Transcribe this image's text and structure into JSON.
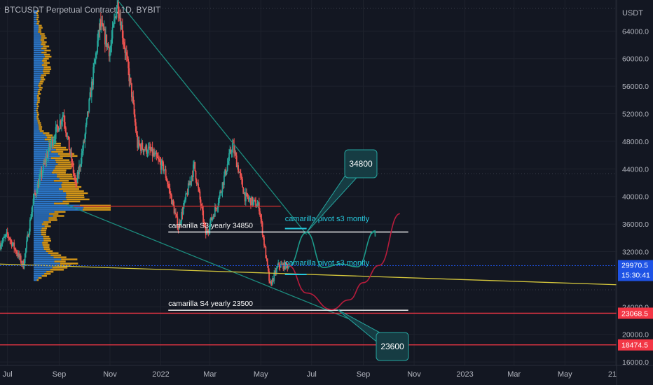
{
  "header": {
    "title": "BTCUSDT Perpetual Contract, 1D, BYBIT"
  },
  "chart_data": {
    "type": "candlestick",
    "symbol": "BTCUSDT",
    "interval": "1D",
    "exchange": "BYBIT",
    "y_unit_label": "USDT",
    "ylim": [
      15500,
      68500
    ],
    "y_ticks": [
      64000,
      60000,
      56000,
      52000,
      48000,
      44000,
      40000,
      36000,
      32000,
      24000,
      20000,
      16000
    ],
    "y_tick_labels": [
      "64000.0",
      "60000.0",
      "56000.0",
      "52000.0",
      "48000.0",
      "44000.0",
      "40000.0",
      "36000.0",
      "32000.0",
      "24000.0",
      "20000.0",
      "16000.0"
    ],
    "x_tick_labels": [
      "Jul",
      "Sep",
      "Nov",
      "2022",
      "Mar",
      "May",
      "Jul",
      "Sep",
      "Nov",
      "2023",
      "Mar",
      "May",
      "21"
    ],
    "x_ticks": [
      "2021-07-01",
      "2021-09-01",
      "2021-11-01",
      "2022-01-01",
      "2022-03-01",
      "2022-05-01",
      "2022-07-01",
      "2022-09-01",
      "2022-11-01",
      "2023-01-01",
      "2023-03-01",
      "2023-05-01",
      "2023-07-01"
    ],
    "xlim": [
      "2021-06-22",
      "2023-07-02"
    ],
    "grid": true,
    "price_path": [
      [
        "2021-06-22",
        33000
      ],
      [
        "2021-07-01",
        34500
      ],
      [
        "2021-07-20",
        30000
      ],
      [
        "2021-08-01",
        39500
      ],
      [
        "2021-08-20",
        47000
      ],
      [
        "2021-09-06",
        52000
      ],
      [
        "2021-09-21",
        41500
      ],
      [
        "2021-10-01",
        48000
      ],
      [
        "2021-10-20",
        65000
      ],
      [
        "2021-11-01",
        61000
      ],
      [
        "2021-11-10",
        68500
      ],
      [
        "2021-11-27",
        55000
      ],
      [
        "2021-12-04",
        47500
      ],
      [
        "2021-12-20",
        46500
      ],
      [
        "2022-01-05",
        44000
      ],
      [
        "2022-01-22",
        35500
      ],
      [
        "2022-02-10",
        44500
      ],
      [
        "2022-02-24",
        34500
      ],
      [
        "2022-03-10",
        39000
      ],
      [
        "2022-03-28",
        47500
      ],
      [
        "2022-04-12",
        40000
      ],
      [
        "2022-04-29",
        38500
      ],
      [
        "2022-05-12",
        27000
      ],
      [
        "2022-05-22",
        30000
      ],
      [
        "2022-06-03",
        29970.5
      ]
    ],
    "volume_profile": {
      "range": [
        28000,
        67000
      ],
      "point_of_control": 38600,
      "colors": {
        "up": "#2f7fd8",
        "down": "#e8a317"
      }
    },
    "last_price": {
      "value": 29970.5,
      "label": "29970.5",
      "countdown": "15:30:41",
      "color": "#1e53e5"
    },
    "lines": [
      {
        "kind": "trend",
        "from": [
          "2021-11-10",
          68500
        ],
        "to": [
          "2022-06-25",
          34500
        ],
        "color": "#1c8d7f"
      },
      {
        "kind": "trend",
        "from": [
          "2021-09-10",
          38800
        ],
        "to": [
          "2022-08-20",
          22000
        ],
        "color": "#1c8d7f"
      },
      {
        "kind": "trend",
        "from": [
          "2021-06-22",
          30200
        ],
        "to": [
          "2023-07-02",
          27200
        ],
        "color": "#d4c63c"
      },
      {
        "kind": "horizontal",
        "from": "2021-09-18",
        "to": "2022-05-25",
        "price": 38600,
        "color": "#d32f2f"
      },
      {
        "kind": "horizontal",
        "from": "2022-01-10",
        "to": "2022-10-25",
        "price": 34850,
        "color": "#ffffff"
      },
      {
        "kind": "horizontal",
        "from": "2022-01-10",
        "to": "2022-10-25",
        "price": 23500,
        "color": "#ffffff"
      },
      {
        "kind": "horizontal-full",
        "price": 23068.5,
        "color": "#f23645"
      },
      {
        "kind": "horizontal-full",
        "price": 18474.5,
        "color": "#f23645"
      }
    ],
    "price_labels": [
      {
        "label": "23068.5",
        "price": 23068.5,
        "color": "#f23645"
      },
      {
        "label": "18474.5",
        "price": 18474.5,
        "color": "#f23645"
      }
    ],
    "annotations": [
      {
        "text": "camarilla S3 yearly 34850",
        "color": "#ffffff"
      },
      {
        "text": "camarilla  S4 yearly 23500",
        "color": "#ffffff"
      },
      {
        "text": "camarilla pivot s3 montly",
        "color": "#26c6da"
      },
      {
        "text": "camarilla pivot s3 montly",
        "color": "#26c6da"
      }
    ],
    "callouts": [
      {
        "text": "34800",
        "target": [
          "2022-06-25",
          34800
        ]
      },
      {
        "text": "23600",
        "target": [
          "2022-08-01",
          23600
        ]
      }
    ],
    "projections": [
      {
        "color": "#1c9a8a",
        "points": [
          [
            "2022-06-03",
            29800
          ],
          [
            "2022-06-25",
            34800
          ],
          [
            "2022-07-15",
            29700
          ],
          [
            "2022-08-05",
            30200
          ],
          [
            "2022-08-25",
            29800
          ],
          [
            "2022-09-15",
            35000
          ]
        ]
      },
      {
        "color": "#b71c3c",
        "points": [
          [
            "2022-06-03",
            30000
          ],
          [
            "2022-06-25",
            26000
          ],
          [
            "2022-07-25",
            23600
          ],
          [
            "2022-08-15",
            25000
          ],
          [
            "2022-09-01",
            27500
          ],
          [
            "2022-09-20",
            30000
          ],
          [
            "2022-10-15",
            37500
          ]
        ]
      }
    ]
  }
}
